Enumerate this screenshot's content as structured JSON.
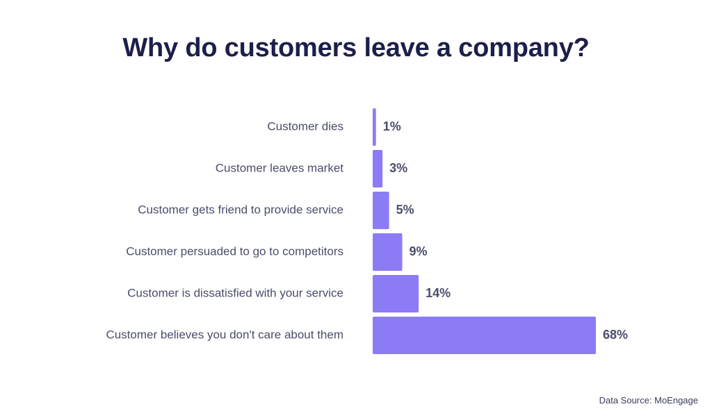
{
  "chart_data": {
    "type": "bar",
    "orientation": "horizontal",
    "title": "Why do customers leave a company?",
    "categories": [
      "Customer dies",
      "Customer leaves market",
      "Customer gets friend to provide service",
      "Customer persuaded to go to competitors",
      "Customer is dissatisfied with your service",
      "Customer believes you don't care about them"
    ],
    "values": [
      1,
      3,
      5,
      9,
      14,
      68
    ],
    "value_labels": [
      "1%",
      "3%",
      "5%",
      "9%",
      "14%",
      "68%"
    ],
    "xlabel": "",
    "ylabel": "",
    "xlim": [
      0,
      68
    ],
    "grid": false,
    "bar_color": "#8b7cf6",
    "label_color": "#4a4d6b",
    "value_color": "#4a4d6b",
    "title_color": "#1c1f4a"
  },
  "source": {
    "label": "Data Source:",
    "name": "MoEngage"
  }
}
